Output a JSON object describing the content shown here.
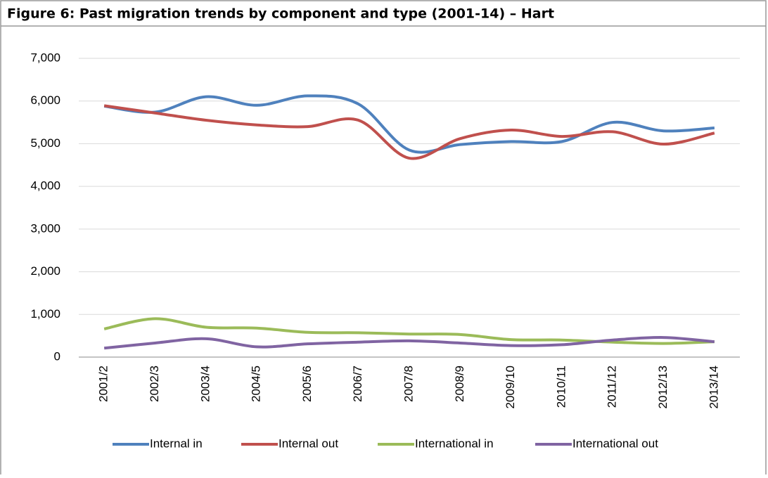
{
  "chart_data": {
    "type": "line",
    "title": "Figure 6: Past migration trends by component and type (2001-14) – Hart",
    "categories": [
      "2001/2",
      "2002/3",
      "2003/4",
      "2004/5",
      "2005/6",
      "2006/7",
      "2007/8",
      "2008/9",
      "2009/10",
      "2010/11",
      "2011/12",
      "2012/13",
      "2013/14"
    ],
    "series": [
      {
        "name": "Internal in",
        "color": "#4f81bd",
        "values": [
          5880,
          5740,
          6100,
          5900,
          6120,
          5930,
          4850,
          4980,
          5050,
          5050,
          5500,
          5300,
          5370
        ]
      },
      {
        "name": "Internal out",
        "color": "#c0504d",
        "values": [
          5890,
          5720,
          5550,
          5440,
          5400,
          5550,
          4660,
          5120,
          5320,
          5170,
          5280,
          4990,
          5250
        ]
      },
      {
        "name": "International in",
        "color": "#9bbb59",
        "values": [
          660,
          900,
          700,
          680,
          580,
          570,
          540,
          530,
          410,
          400,
          350,
          320,
          360
        ]
      },
      {
        "name": "International out",
        "color": "#8064a2",
        "values": [
          210,
          330,
          430,
          240,
          310,
          350,
          380,
          330,
          270,
          290,
          400,
          460,
          360
        ]
      }
    ],
    "ylim": [
      0,
      7000
    ],
    "yticks": [
      0,
      {
        "value": 1000,
        "label": "1,000"
      },
      {
        "value": 2000,
        "label": "2,000"
      },
      {
        "value": 3000,
        "label": "3,000"
      },
      {
        "value": 4000,
        "label": "4,000"
      },
      {
        "value": 5000,
        "label": "5,000"
      },
      {
        "value": 6000,
        "label": "6,000"
      },
      {
        "value": 7000,
        "label": "7,000"
      }
    ],
    "grid": true,
    "smooth": true,
    "legend": "bottom"
  }
}
